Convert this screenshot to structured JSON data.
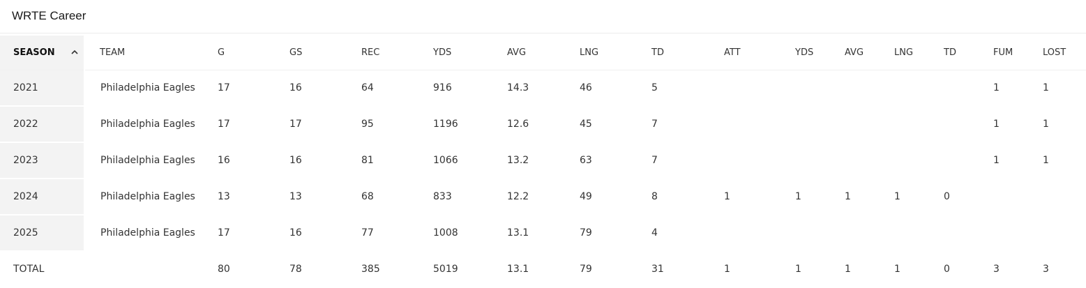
{
  "title": "WRTE Career",
  "columns": [
    "SEASON",
    "TEAM",
    "G",
    "GS",
    "REC",
    "YDS",
    "AVG",
    "LNG",
    "TD",
    "ATT",
    "YDS",
    "AVG",
    "LNG",
    "TD",
    "FUM",
    "LOST"
  ],
  "sort_icon": "chevron-up-icon",
  "rows": [
    [
      "2021",
      "Philadelphia Eagles",
      "17",
      "16",
      "64",
      "916",
      "14.3",
      "46",
      "5",
      "",
      "",
      "",
      "",
      "",
      "1",
      "1"
    ],
    [
      "2022",
      "Philadelphia Eagles",
      "17",
      "17",
      "95",
      "1196",
      "12.6",
      "45",
      "7",
      "",
      "",
      "",
      "",
      "",
      "1",
      "1"
    ],
    [
      "2023",
      "Philadelphia Eagles",
      "16",
      "16",
      "81",
      "1066",
      "13.2",
      "63",
      "7",
      "",
      "",
      "",
      "",
      "",
      "1",
      "1"
    ],
    [
      "2024",
      "Philadelphia Eagles",
      "13",
      "13",
      "68",
      "833",
      "12.2",
      "49",
      "8",
      "1",
      "1",
      "1",
      "1",
      "0",
      "",
      ""
    ],
    [
      "2025",
      "Philadelphia Eagles",
      "17",
      "16",
      "77",
      "1008",
      "13.1",
      "79",
      "4",
      "",
      "",
      "",
      "",
      "",
      "",
      ""
    ],
    [
      "TOTAL",
      "",
      "80",
      "78",
      "385",
      "5019",
      "13.1",
      "79",
      "31",
      "1",
      "1",
      "1",
      "1",
      "0",
      "3",
      "3"
    ]
  ]
}
